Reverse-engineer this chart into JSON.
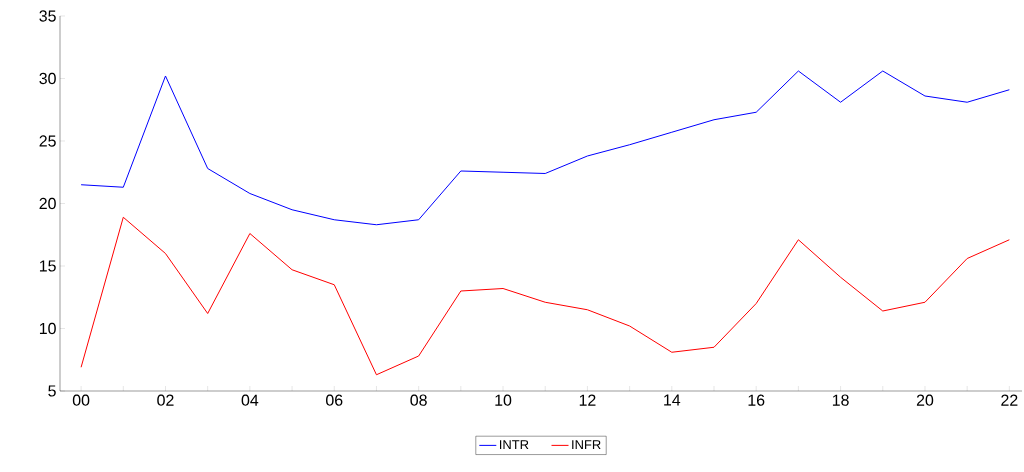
{
  "chart_data": {
    "type": "line",
    "categories": [
      "00",
      null,
      "02",
      null,
      "04",
      null,
      "06",
      null,
      "08",
      null,
      "10",
      null,
      "12",
      null,
      "14",
      null,
      "16",
      null,
      "18",
      null,
      "20",
      null,
      "22"
    ],
    "series": [
      {
        "name": "INTR",
        "color": "#0000ff",
        "values": [
          21.5,
          21.3,
          30.2,
          22.8,
          20.8,
          19.5,
          18.7,
          18.3,
          18.7,
          22.6,
          22.5,
          22.4,
          23.8,
          24.7,
          25.7,
          26.7,
          27.3,
          30.6,
          28.1,
          30.6,
          28.6,
          28.1,
          29.1
        ]
      },
      {
        "name": "INFR",
        "color": "#ff0000",
        "values": [
          6.9,
          18.9,
          16.0,
          11.2,
          17.6,
          14.7,
          13.5,
          6.3,
          7.8,
          13.0,
          13.2,
          12.1,
          11.5,
          10.2,
          8.1,
          8.5,
          12.0,
          17.1,
          14.1,
          11.4,
          12.1,
          15.6,
          17.1
        ]
      }
    ],
    "ylim": [
      5,
      35
    ],
    "yticks": [
      5,
      10,
      15,
      20,
      25,
      30,
      35
    ],
    "legend": "bottom"
  }
}
